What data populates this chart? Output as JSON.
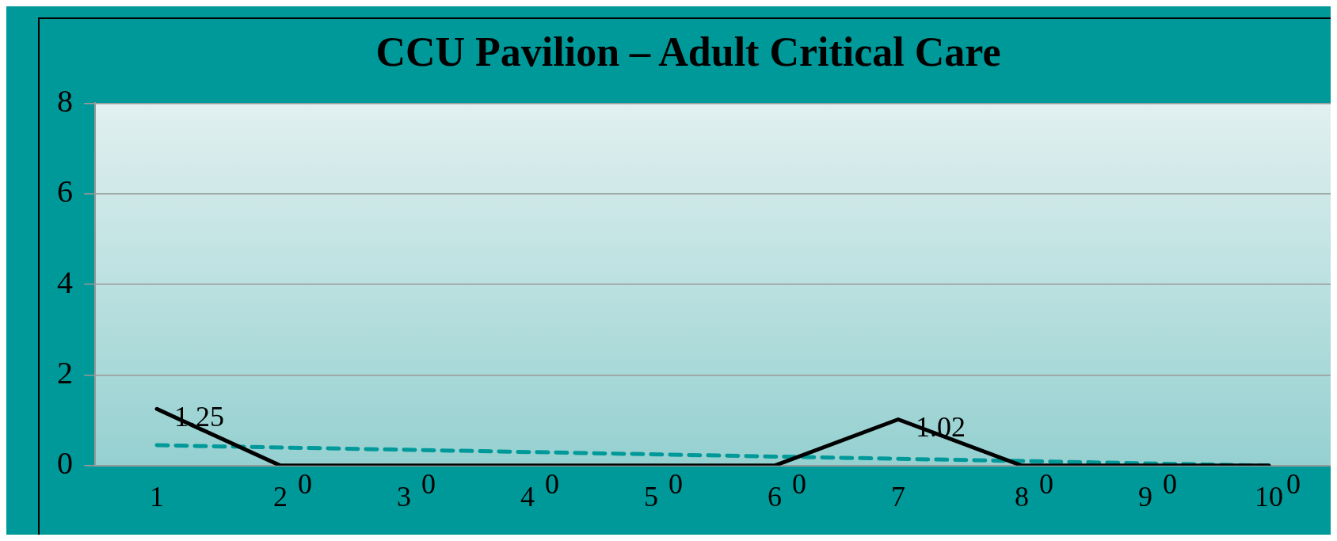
{
  "chart_data": {
    "type": "line",
    "title": "CCU Pavilion – Adult Critical Care",
    "x": [
      1,
      2,
      3,
      4,
      5,
      6,
      7,
      8,
      9,
      10
    ],
    "xlim": [
      0.5,
      10.5
    ],
    "xticks": [
      1,
      2,
      3,
      4,
      5,
      6,
      7,
      8,
      9,
      10
    ],
    "ylim": [
      0,
      8
    ],
    "yticks": [
      0,
      2,
      4,
      6,
      8
    ],
    "grid": "y",
    "legend": false,
    "marker": "none",
    "series": [
      {
        "color": "#000000",
        "values": [
          1.25,
          0,
          0,
          0,
          0,
          0,
          1.02,
          0,
          0,
          0
        ],
        "value_labels": [
          "1.25",
          "0",
          "0",
          "0",
          "0",
          "0",
          "1.02",
          "0",
          "0",
          "0"
        ],
        "line_style": "solid"
      },
      {
        "type": "line",
        "color": "#009999",
        "x": [
          1,
          10
        ],
        "values": [
          0.45,
          0
        ],
        "line_style": "dashed"
      }
    ]
  }
}
